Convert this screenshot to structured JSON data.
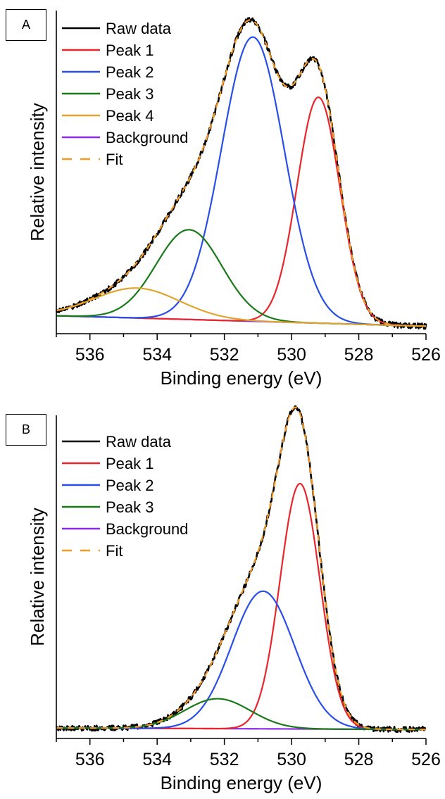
{
  "chart_data": [
    {
      "panel_label": "A",
      "type": "line",
      "title": "",
      "xlabel": "Binding energy (eV)",
      "ylabel": "Relative intensity",
      "xlim": [
        537,
        526
      ],
      "ylim": [
        -0.03,
        1.05
      ],
      "x_reversed": true,
      "x_ticks": [
        536,
        534,
        532,
        530,
        528,
        526
      ],
      "y_ticks": [],
      "grid": false,
      "legend_position": "top-left",
      "series": [
        {
          "name": "Raw data",
          "color": "#000000",
          "dash": "solid",
          "kind": "measured"
        },
        {
          "name": "Peak 1",
          "color": "#e8262b",
          "dash": "solid",
          "kind": "peak",
          "center": 529.2,
          "height": 0.755,
          "fwhm": 1.5
        },
        {
          "name": "Peak 2",
          "color": "#2a4ee8",
          "dash": "solid",
          "kind": "peak",
          "center": 531.15,
          "height": 0.95,
          "fwhm": 2.2
        },
        {
          "name": "Peak 3",
          "color": "#1a7a1a",
          "dash": "solid",
          "kind": "peak",
          "center": 533.05,
          "height": 0.3,
          "fwhm": 2.3
        },
        {
          "name": "Peak 4",
          "color": "#e0a530",
          "dash": "solid",
          "kind": "peak",
          "center": 534.6,
          "height": 0.1,
          "fwhm": 3.0
        },
        {
          "name": "Background",
          "color": "#8a2be2",
          "dash": "solid",
          "kind": "background",
          "x": [
            537,
            526
          ],
          "y": [
            0.03,
            -0.005
          ]
        },
        {
          "name": "Fit",
          "color": "#f59a23",
          "dash": "dashed",
          "kind": "sum"
        }
      ]
    },
    {
      "panel_label": "B",
      "type": "line",
      "title": "",
      "xlabel": "Binding energy (eV)",
      "ylabel": "Relative intensity",
      "xlim": [
        537,
        526
      ],
      "ylim": [
        -0.03,
        1.05
      ],
      "x_reversed": true,
      "x_ticks": [
        536,
        534,
        532,
        530,
        528,
        526
      ],
      "y_ticks": [],
      "grid": false,
      "legend_position": "top-left",
      "series": [
        {
          "name": "Raw data",
          "color": "#000000",
          "dash": "solid",
          "kind": "measured"
        },
        {
          "name": "Peak 1",
          "color": "#e8262b",
          "dash": "solid",
          "kind": "peak",
          "center": 529.75,
          "height": 0.82,
          "fwhm": 1.4
        },
        {
          "name": "Peak 2",
          "color": "#2a4ee8",
          "dash": "solid",
          "kind": "peak",
          "center": 530.85,
          "height": 0.46,
          "fwhm": 2.2
        },
        {
          "name": "Peak 3",
          "color": "#1a7a1a",
          "dash": "solid",
          "kind": "peak",
          "center": 532.2,
          "height": 0.1,
          "fwhm": 2.3
        },
        {
          "name": "Background",
          "color": "#8a2be2",
          "dash": "solid",
          "kind": "background",
          "x": [
            537,
            526
          ],
          "y": [
            0.005,
            0.0
          ]
        },
        {
          "name": "Fit",
          "color": "#f59a23",
          "dash": "dashed",
          "kind": "sum"
        }
      ]
    }
  ]
}
